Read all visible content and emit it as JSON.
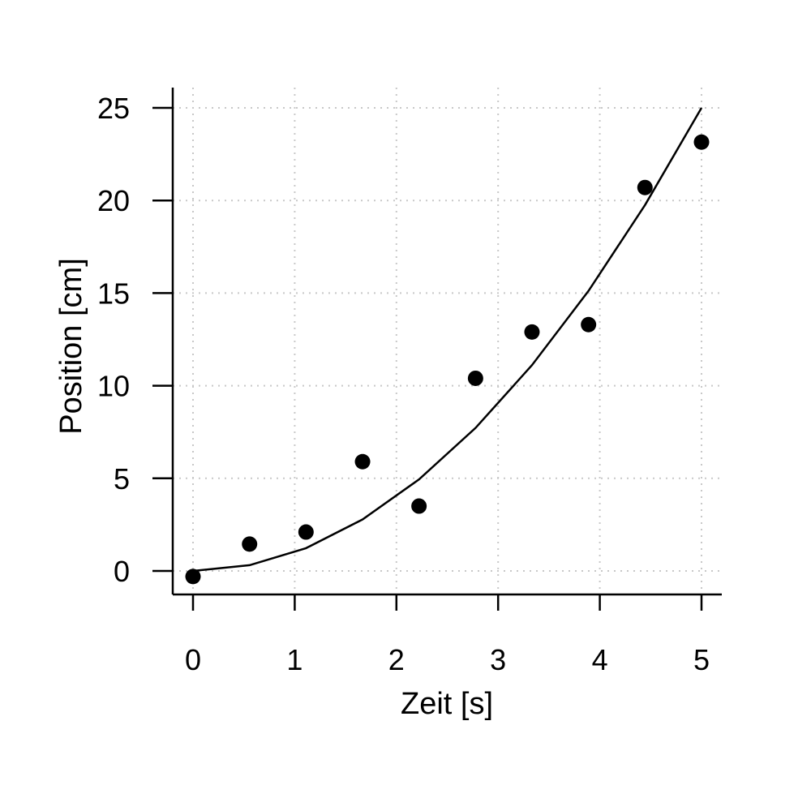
{
  "chart_data": {
    "type": "scatter",
    "title": "",
    "xlabel": "Zeit [s]",
    "ylabel": "Position [cm]",
    "xlim": [
      0,
      5
    ],
    "ylim": [
      0,
      25
    ],
    "x_ticks": [
      0,
      1,
      2,
      3,
      4,
      5
    ],
    "y_ticks": [
      0,
      5,
      10,
      15,
      20,
      25
    ],
    "grid": true,
    "series": [
      {
        "type": "scatter",
        "x": [
          0,
          0.556,
          1.111,
          1.667,
          2.222,
          2.778,
          3.333,
          3.889,
          4.444,
          5.0
        ],
        "y": [
          -0.3,
          1.45,
          2.1,
          5.9,
          3.5,
          10.4,
          12.9,
          13.3,
          20.7,
          23.15
        ]
      },
      {
        "type": "line",
        "x": [
          0,
          0.556,
          1.111,
          1.667,
          2.222,
          2.778,
          3.333,
          3.889,
          4.444,
          5.0
        ],
        "y": [
          0,
          0.31,
          1.23,
          2.78,
          4.94,
          7.72,
          11.11,
          15.12,
          19.75,
          25.0
        ]
      }
    ],
    "colors": {
      "axis": "#000000",
      "grid": "#c8c8c8",
      "points": "#000000",
      "line": "#000000"
    }
  }
}
